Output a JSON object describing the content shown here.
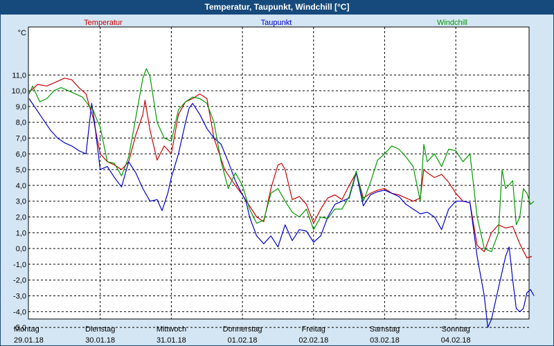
{
  "window": {
    "title": "Temperatur, Taupunkt, Windchill [°C]"
  },
  "chart_data": {
    "type": "line",
    "title": "Temperatur, Taupunkt, Windchill [°C]",
    "ylabel": "°C",
    "ylim": [
      -5.5,
      11.5
    ],
    "yticks": [
      11,
      10,
      9,
      8,
      7,
      6,
      5,
      4,
      3,
      2,
      1,
      0,
      -1,
      -2,
      -3,
      -4,
      -5
    ],
    "ytick_labels": [
      "11,0",
      "10,0",
      "9,0",
      "8,0",
      "7,0",
      "6,0",
      "5,0",
      "4,0",
      "3,0",
      "2,0",
      "1,0",
      "0,0",
      "-1,0",
      "-2,0",
      "-3,0",
      "-4,0",
      "-5,0"
    ],
    "xlim": [
      0,
      7
    ],
    "x_unit": "days since Montag 29.01.18 00:00",
    "days": [
      {
        "weekday": "Montag",
        "date": "29.01.18"
      },
      {
        "weekday": "Dienstag",
        "date": "30.01.18"
      },
      {
        "weekday": "Mittwoch",
        "date": "31.01.18"
      },
      {
        "weekday": "Donnerstag",
        "date": "01.02.18"
      },
      {
        "weekday": "Freitag",
        "date": "02.02.18"
      },
      {
        "weekday": "Samstag",
        "date": "03.02.18"
      },
      {
        "weekday": "Sonntag",
        "date": "04.02.18"
      }
    ],
    "grid": true,
    "legend": "top",
    "series": [
      {
        "name": "Temperatur",
        "color": "#cc0000",
        "points": [
          [
            0,
            9.9
          ],
          [
            0.12,
            10.4
          ],
          [
            0.25,
            10.3
          ],
          [
            0.4,
            10.6
          ],
          [
            0.5,
            10.8
          ],
          [
            0.6,
            10.7
          ],
          [
            0.7,
            10.2
          ],
          [
            0.8,
            9.8
          ],
          [
            0.85,
            9.0
          ],
          [
            0.9,
            8.3
          ],
          [
            1.0,
            6.0
          ],
          [
            1.1,
            5.5
          ],
          [
            1.2,
            5.3
          ],
          [
            1.3,
            5.0
          ],
          [
            1.4,
            5.5
          ],
          [
            1.5,
            7.2
          ],
          [
            1.6,
            8.5
          ],
          [
            1.63,
            9.4
          ],
          [
            1.7,
            7.5
          ],
          [
            1.8,
            5.6
          ],
          [
            1.9,
            6.5
          ],
          [
            2.0,
            6.0
          ],
          [
            2.1,
            8.5
          ],
          [
            2.2,
            9.3
          ],
          [
            2.3,
            9.5
          ],
          [
            2.4,
            9.8
          ],
          [
            2.5,
            9.5
          ],
          [
            2.6,
            7.0
          ],
          [
            2.75,
            5.0
          ],
          [
            2.9,
            4.0
          ],
          [
            3.0,
            3.4
          ],
          [
            3.2,
            2.0
          ],
          [
            3.3,
            1.7
          ],
          [
            3.4,
            3.8
          ],
          [
            3.5,
            5.3
          ],
          [
            3.55,
            5.4
          ],
          [
            3.6,
            5.0
          ],
          [
            3.7,
            3.1
          ],
          [
            3.8,
            3.3
          ],
          [
            3.9,
            2.8
          ],
          [
            4.0,
            1.6
          ],
          [
            4.1,
            2.5
          ],
          [
            4.2,
            3.2
          ],
          [
            4.3,
            3.4
          ],
          [
            4.4,
            3.1
          ],
          [
            4.5,
            4.0
          ],
          [
            4.6,
            4.8
          ],
          [
            4.7,
            3.2
          ],
          [
            4.8,
            3.5
          ],
          [
            4.9,
            3.7
          ],
          [
            5.0,
            3.8
          ],
          [
            5.1,
            3.5
          ],
          [
            5.2,
            3.4
          ],
          [
            5.3,
            3.2
          ],
          [
            5.4,
            3.0
          ],
          [
            5.5,
            3.2
          ],
          [
            5.55,
            5.0
          ],
          [
            5.6,
            4.8
          ],
          [
            5.7,
            4.5
          ],
          [
            5.8,
            4.7
          ],
          [
            5.9,
            4.2
          ],
          [
            6.0,
            3.5
          ],
          [
            6.1,
            3.0
          ],
          [
            6.2,
            2.9
          ],
          [
            6.3,
            0.2
          ],
          [
            6.4,
            -0.2
          ],
          [
            6.5,
            1.0
          ],
          [
            6.6,
            1.5
          ],
          [
            6.7,
            1.3
          ],
          [
            6.8,
            1.4
          ],
          [
            6.9,
            0.3
          ],
          [
            7.0,
            -0.6
          ],
          [
            7.07,
            -0.5
          ]
        ]
      },
      {
        "name": "Taupunkt",
        "color": "#0000cc",
        "points": [
          [
            0,
            9.5
          ],
          [
            0.15,
            8.5
          ],
          [
            0.3,
            7.5
          ],
          [
            0.4,
            7.0
          ],
          [
            0.5,
            6.7
          ],
          [
            0.6,
            6.5
          ],
          [
            0.7,
            6.2
          ],
          [
            0.75,
            6.1
          ],
          [
            0.8,
            6.0
          ],
          [
            0.85,
            8.0
          ],
          [
            0.88,
            9.2
          ],
          [
            0.92,
            8.0
          ],
          [
            1.0,
            5.0
          ],
          [
            1.1,
            5.2
          ],
          [
            1.2,
            4.5
          ],
          [
            1.3,
            3.9
          ],
          [
            1.4,
            5.5
          ],
          [
            1.5,
            4.8
          ],
          [
            1.6,
            3.8
          ],
          [
            1.7,
            3.0
          ],
          [
            1.8,
            3.1
          ],
          [
            1.87,
            2.4
          ],
          [
            1.95,
            3.5
          ],
          [
            2.0,
            4.5
          ],
          [
            2.1,
            6.0
          ],
          [
            2.2,
            8.0
          ],
          [
            2.25,
            8.9
          ],
          [
            2.3,
            9.2
          ],
          [
            2.4,
            8.5
          ],
          [
            2.5,
            7.6
          ],
          [
            2.6,
            7.0
          ],
          [
            2.7,
            6.6
          ],
          [
            2.8,
            5.5
          ],
          [
            2.9,
            4.3
          ],
          [
            3.0,
            3.4
          ],
          [
            3.05,
            3.0
          ],
          [
            3.1,
            2.0
          ],
          [
            3.2,
            0.8
          ],
          [
            3.3,
            0.3
          ],
          [
            3.4,
            0.8
          ],
          [
            3.5,
            0.1
          ],
          [
            3.6,
            1.5
          ],
          [
            3.7,
            0.5
          ],
          [
            3.8,
            1.2
          ],
          [
            3.9,
            1.1
          ],
          [
            4.0,
            0.4
          ],
          [
            4.1,
            0.8
          ],
          [
            4.2,
            2.0
          ],
          [
            4.3,
            2.8
          ],
          [
            4.4,
            3.0
          ],
          [
            4.5,
            3.2
          ],
          [
            4.6,
            4.8
          ],
          [
            4.7,
            2.7
          ],
          [
            4.8,
            3.4
          ],
          [
            4.9,
            3.6
          ],
          [
            5.0,
            3.7
          ],
          [
            5.1,
            3.5
          ],
          [
            5.2,
            3.3
          ],
          [
            5.3,
            2.8
          ],
          [
            5.4,
            2.5
          ],
          [
            5.5,
            2.2
          ],
          [
            5.6,
            2.3
          ],
          [
            5.7,
            2.0
          ],
          [
            5.8,
            1.2
          ],
          [
            5.9,
            2.5
          ],
          [
            6.0,
            3.0
          ],
          [
            6.1,
            3.0
          ],
          [
            6.2,
            2.9
          ],
          [
            6.3,
            -0.5
          ],
          [
            6.4,
            -3.0
          ],
          [
            6.45,
            -5.0
          ],
          [
            6.5,
            -4.5
          ],
          [
            6.6,
            -2.5
          ],
          [
            6.7,
            -0.5
          ],
          [
            6.75,
            0.1
          ],
          [
            6.8,
            -2.0
          ],
          [
            6.85,
            -3.8
          ],
          [
            6.9,
            -4.0
          ],
          [
            6.95,
            -3.8
          ],
          [
            7.0,
            -2.8
          ],
          [
            7.05,
            -2.6
          ],
          [
            7.1,
            -3.0
          ]
        ]
      },
      {
        "name": "Windchill",
        "color": "#009900",
        "points": [
          [
            0,
            9.8
          ],
          [
            0.05,
            10.3
          ],
          [
            0.15,
            9.3
          ],
          [
            0.25,
            9.5
          ],
          [
            0.35,
            10.0
          ],
          [
            0.45,
            10.2
          ],
          [
            0.55,
            10.0
          ],
          [
            0.65,
            9.8
          ],
          [
            0.75,
            9.6
          ],
          [
            0.85,
            9.0
          ],
          [
            0.9,
            8.8
          ],
          [
            0.95,
            8.2
          ],
          [
            1.0,
            7.7
          ],
          [
            1.1,
            5.5
          ],
          [
            1.2,
            5.4
          ],
          [
            1.3,
            4.6
          ],
          [
            1.4,
            5.8
          ],
          [
            1.5,
            8.3
          ],
          [
            1.6,
            10.8
          ],
          [
            1.65,
            11.4
          ],
          [
            1.7,
            10.9
          ],
          [
            1.8,
            8.0
          ],
          [
            1.9,
            7.0
          ],
          [
            2.0,
            6.8
          ],
          [
            2.1,
            8.8
          ],
          [
            2.2,
            9.3
          ],
          [
            2.3,
            9.6
          ],
          [
            2.4,
            9.5
          ],
          [
            2.5,
            9.2
          ],
          [
            2.6,
            8.0
          ],
          [
            2.7,
            5.5
          ],
          [
            2.8,
            3.8
          ],
          [
            2.9,
            4.8
          ],
          [
            3.0,
            4.0
          ],
          [
            3.1,
            2.5
          ],
          [
            3.2,
            1.6
          ],
          [
            3.3,
            1.8
          ],
          [
            3.4,
            3.5
          ],
          [
            3.5,
            3.8
          ],
          [
            3.6,
            3.0
          ],
          [
            3.7,
            2.3
          ],
          [
            3.8,
            2.0
          ],
          [
            3.9,
            2.5
          ],
          [
            4.0,
            1.2
          ],
          [
            4.1,
            2.0
          ],
          [
            4.2,
            1.9
          ],
          [
            4.3,
            2.5
          ],
          [
            4.4,
            2.5
          ],
          [
            4.5,
            3.3
          ],
          [
            4.6,
            4.9
          ],
          [
            4.7,
            3.0
          ],
          [
            4.8,
            4.2
          ],
          [
            4.9,
            5.6
          ],
          [
            5.0,
            6.0
          ],
          [
            5.1,
            6.5
          ],
          [
            5.2,
            6.3
          ],
          [
            5.3,
            5.8
          ],
          [
            5.4,
            5.2
          ],
          [
            5.5,
            3.0
          ],
          [
            5.55,
            6.6
          ],
          [
            5.6,
            5.5
          ],
          [
            5.7,
            6.0
          ],
          [
            5.8,
            5.2
          ],
          [
            5.9,
            6.3
          ],
          [
            6.0,
            6.2
          ],
          [
            6.1,
            5.5
          ],
          [
            6.2,
            6.0
          ],
          [
            6.3,
            2.0
          ],
          [
            6.4,
            0.0
          ],
          [
            6.5,
            -0.2
          ],
          [
            6.6,
            1.0
          ],
          [
            6.65,
            5.0
          ],
          [
            6.7,
            3.8
          ],
          [
            6.8,
            4.3
          ],
          [
            6.85,
            1.5
          ],
          [
            6.9,
            2.0
          ],
          [
            6.95,
            3.8
          ],
          [
            7.0,
            3.5
          ],
          [
            7.05,
            2.8
          ],
          [
            7.1,
            3.0
          ]
        ]
      }
    ]
  }
}
